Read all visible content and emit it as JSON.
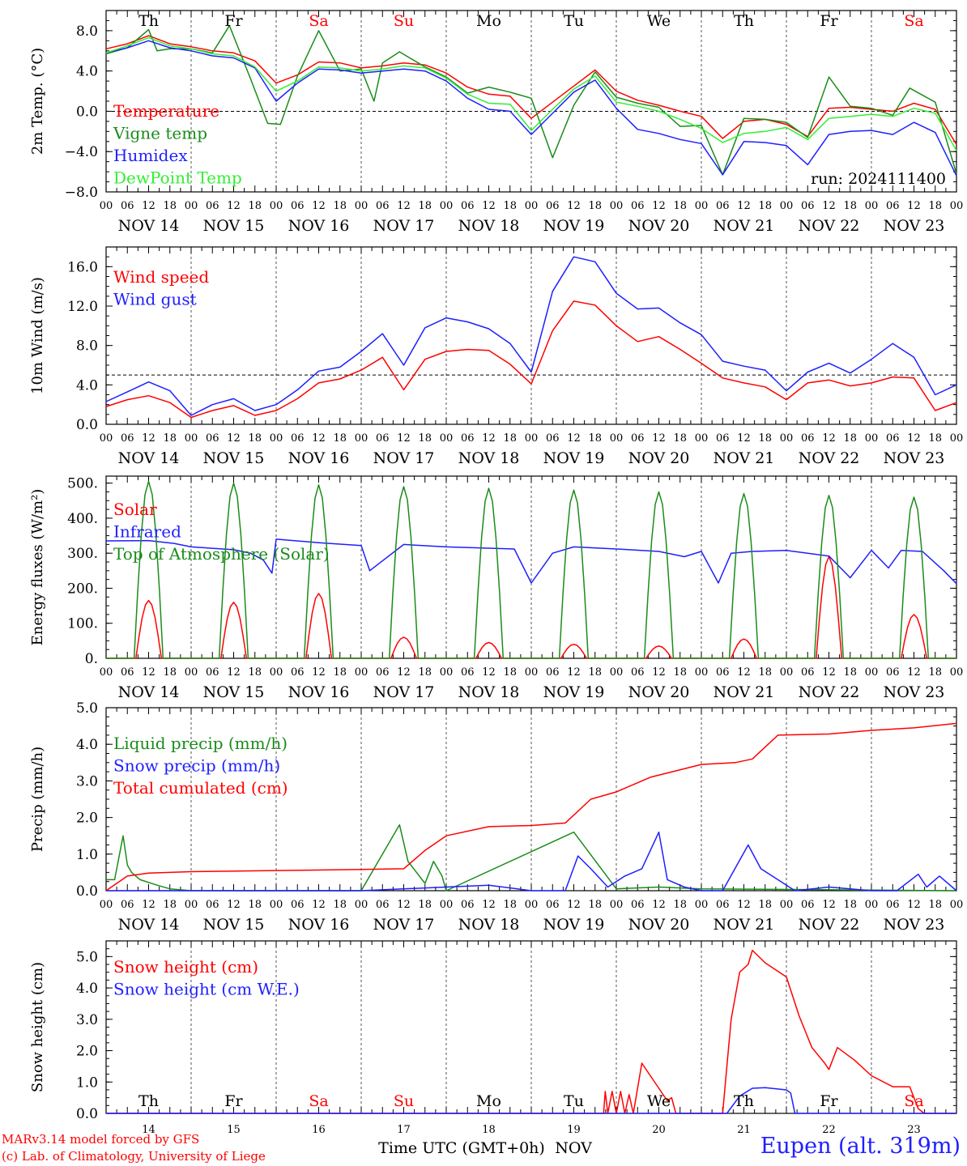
{
  "run_label": "run: 2024111400",
  "footer": {
    "credit_line1": "MARv3.14 model forced by GFS",
    "credit_line2": "(c) Lab. of Climatology, University of Liege",
    "station": "Eupen (alt. 319m)",
    "xlabel": "Time UTC (GMT+0h)",
    "month": "NOV"
  },
  "days": [
    "Th",
    "Fr",
    "Sa",
    "Su",
    "Mo",
    "Tu",
    "We",
    "Th",
    "Fr",
    "Sa"
  ],
  "weekend_days": [
    "Sa",
    "Su"
  ],
  "date_labels": [
    "NOV 14",
    "NOV 15",
    "NOV 16",
    "NOV 17",
    "NOV 18",
    "NOV 19",
    "NOV 20",
    "NOV 21",
    "NOV 22",
    "NOV 23"
  ],
  "day_numbers": [
    "14",
    "15",
    "16",
    "17",
    "18",
    "19",
    "20",
    "21",
    "22",
    "23"
  ],
  "hour_ticks": [
    "00",
    "06",
    "12",
    "18"
  ],
  "colors": {
    "red": "#ff0000",
    "green": "#1a8c1a",
    "blue": "#1f1fff",
    "lightgreen": "#33ee33",
    "black": "#000000",
    "weekend": "#ff0000"
  },
  "chart_data": [
    {
      "type": "line",
      "ylabel": "2m Temp. (°C)",
      "ylim": [
        -8,
        10
      ],
      "yticks": [
        -8,
        -4,
        0,
        4,
        8
      ],
      "ytick_labels": [
        "−8.0",
        "−4.0",
        "0.0",
        "4.0",
        "8.0"
      ],
      "ref_line": 0,
      "x_unit": "days from NOV 14 00 UTC",
      "series": [
        {
          "name": "Temperature",
          "color": "red",
          "x": [
            0,
            0.25,
            0.5,
            0.75,
            1,
            1.25,
            1.5,
            1.75,
            2,
            2.25,
            2.5,
            2.75,
            3,
            3.25,
            3.5,
            3.75,
            4,
            4.25,
            4.5,
            4.75,
            5,
            5.25,
            5.5,
            5.75,
            6,
            6.25,
            6.5,
            6.75,
            7,
            7.25,
            7.5,
            7.75,
            8,
            8.25,
            8.5,
            8.75,
            9,
            9.25,
            9.5,
            9.75,
            10
          ],
          "y": [
            6.2,
            6.7,
            7.5,
            6.7,
            6.4,
            6.0,
            5.8,
            5.0,
            2.8,
            3.6,
            4.9,
            4.8,
            4.3,
            4.5,
            4.8,
            4.6,
            3.8,
            2.4,
            1.7,
            1.5,
            -0.7,
            0.9,
            2.5,
            4.1,
            2.0,
            1.1,
            0.6,
            0.0,
            -0.5,
            -2.7,
            -1.0,
            -0.8,
            -1.3,
            -2.5,
            0.3,
            0.4,
            0.2,
            0.0,
            0.8,
            0.2,
            -3.3
          ]
        },
        {
          "name": "Vigne temp",
          "color": "green",
          "x": [
            0,
            0.25,
            0.5,
            0.6,
            0.75,
            1,
            1.25,
            1.45,
            1.7,
            1.9,
            2.05,
            2.25,
            2.5,
            2.75,
            3,
            3.15,
            3.25,
            3.45,
            3.75,
            4,
            4.25,
            4.5,
            4.75,
            5,
            5.25,
            5.5,
            5.75,
            6,
            6.25,
            6.5,
            6.75,
            7,
            7.25,
            7.5,
            7.75,
            8,
            8.25,
            8.5,
            8.75,
            9,
            9.25,
            9.45,
            9.75,
            10
          ],
          "y": [
            5.7,
            6.3,
            8.1,
            6.0,
            6.2,
            6.2,
            5.8,
            8.5,
            3.2,
            -1.2,
            -1.3,
            3.5,
            8.0,
            4.0,
            4.2,
            1.0,
            4.8,
            5.9,
            4.4,
            3.4,
            1.8,
            2.4,
            1.9,
            1.3,
            -4.6,
            0.6,
            3.9,
            1.4,
            0.8,
            0.4,
            -1.5,
            -1.4,
            -6.3,
            -0.7,
            -0.8,
            -1.1,
            -2.6,
            3.4,
            0.5,
            0.3,
            -0.4,
            2.3,
            0.9,
            -6.2
          ]
        },
        {
          "name": "Humidex",
          "color": "blue",
          "x": [
            0,
            0.25,
            0.5,
            0.75,
            1,
            1.25,
            1.5,
            1.75,
            2,
            2.25,
            2.5,
            2.75,
            3,
            3.25,
            3.5,
            3.75,
            4,
            4.25,
            4.5,
            4.75,
            5,
            5.25,
            5.5,
            5.75,
            6,
            6.25,
            6.5,
            6.75,
            7,
            7.25,
            7.5,
            7.75,
            8,
            8.25,
            8.5,
            8.75,
            9,
            9.25,
            9.5,
            9.75,
            10
          ],
          "y": [
            5.8,
            6.3,
            7.0,
            6.3,
            6.0,
            5.5,
            5.3,
            4.3,
            1.0,
            2.8,
            4.2,
            4.1,
            3.8,
            4.0,
            4.2,
            4.0,
            3.0,
            1.3,
            0.2,
            0.0,
            -2.3,
            -0.2,
            1.9,
            3.1,
            0.3,
            -1.8,
            -2.2,
            -2.8,
            -3.2,
            -6.3,
            -3.0,
            -3.1,
            -3.4,
            -5.3,
            -2.3,
            -2.0,
            -1.9,
            -2.3,
            -1.1,
            -2.1,
            -6.4
          ]
        },
        {
          "name": "DewPoint Temp",
          "color": "lightgreen",
          "x": [
            0,
            0.25,
            0.5,
            0.75,
            1,
            1.25,
            1.5,
            1.75,
            2,
            2.25,
            2.5,
            2.75,
            3,
            3.25,
            3.5,
            3.75,
            4,
            4.25,
            4.5,
            4.75,
            5,
            5.25,
            5.5,
            5.75,
            6,
            6.25,
            6.5,
            6.75,
            7,
            7.25,
            7.5,
            7.75,
            8,
            8.25,
            8.5,
            8.75,
            9,
            9.25,
            9.5,
            9.75,
            10
          ],
          "y": [
            5.8,
            6.5,
            7.3,
            6.5,
            6.2,
            5.7,
            5.5,
            4.4,
            2.0,
            3.0,
            4.4,
            4.3,
            4.0,
            4.2,
            4.5,
            4.3,
            3.3,
            1.7,
            0.8,
            0.7,
            -1.9,
            0.2,
            2.2,
            3.5,
            0.9,
            0.5,
            0.0,
            -0.8,
            -1.7,
            -3.1,
            -2.2,
            -2.0,
            -1.6,
            -2.8,
            -0.7,
            -0.5,
            -0.3,
            -0.5,
            0.3,
            -0.2,
            -3.9
          ]
        }
      ]
    },
    {
      "type": "line",
      "ylabel": "10m Wind (m/s)",
      "ylim": [
        0,
        18
      ],
      "yticks": [
        0,
        4,
        8,
        12,
        16
      ],
      "ytick_labels": [
        "0.0",
        "4.0",
        "8.0",
        "12.0",
        "16.0"
      ],
      "ref_line": 5,
      "x_unit": "days from NOV 14 00 UTC",
      "series": [
        {
          "name": "Wind speed",
          "color": "red",
          "x": [
            0,
            0.25,
            0.5,
            0.75,
            1,
            1.25,
            1.5,
            1.75,
            2,
            2.25,
            2.5,
            2.75,
            3,
            3.25,
            3.5,
            3.75,
            4,
            4.25,
            4.5,
            4.75,
            5,
            5.25,
            5.5,
            5.75,
            6,
            6.25,
            6.5,
            6.75,
            7,
            7.25,
            7.5,
            7.75,
            8,
            8.25,
            8.5,
            8.75,
            9,
            9.25,
            9.5,
            9.75,
            10
          ],
          "y": [
            1.8,
            2.5,
            2.9,
            2.2,
            0.7,
            1.4,
            1.9,
            0.9,
            1.4,
            2.6,
            4.2,
            4.6,
            5.5,
            6.8,
            3.5,
            6.6,
            7.4,
            7.6,
            7.5,
            6.1,
            4.1,
            9.5,
            12.5,
            12.1,
            10.0,
            8.4,
            8.9,
            7.6,
            6.2,
            4.7,
            4.2,
            3.8,
            2.5,
            4.2,
            4.5,
            3.9,
            4.2,
            4.8,
            4.7,
            1.4,
            2.2
          ]
        },
        {
          "name": "Wind gust",
          "color": "blue",
          "x": [
            0,
            0.25,
            0.5,
            0.75,
            1,
            1.25,
            1.5,
            1.75,
            2,
            2.25,
            2.5,
            2.75,
            3,
            3.25,
            3.5,
            3.75,
            4,
            4.25,
            4.5,
            4.75,
            5,
            5.25,
            5.5,
            5.75,
            6,
            6.25,
            6.5,
            6.75,
            7,
            7.25,
            7.5,
            7.75,
            8,
            8.25,
            8.5,
            8.75,
            9,
            9.25,
            9.5,
            9.75,
            10
          ],
          "y": [
            2.3,
            3.3,
            4.3,
            3.4,
            0.9,
            2.0,
            2.6,
            1.4,
            2.0,
            3.5,
            5.4,
            5.8,
            7.4,
            9.2,
            6.0,
            9.8,
            10.8,
            10.4,
            9.7,
            8.2,
            5.3,
            13.5,
            17.0,
            16.5,
            13.3,
            11.7,
            11.8,
            10.3,
            9.1,
            6.4,
            5.9,
            5.5,
            3.4,
            5.3,
            6.2,
            5.2,
            6.6,
            8.2,
            6.8,
            3.0,
            4.0
          ]
        }
      ]
    },
    {
      "type": "line",
      "ylabel": "Energy fluxes (W/m²)",
      "ylim": [
        0,
        520
      ],
      "yticks": [
        0,
        100,
        200,
        300,
        400,
        500
      ],
      "ytick_labels": [
        "0.",
        "100.",
        "200.",
        "300.",
        "400.",
        "500."
      ],
      "x_unit": "days from NOV 14 00 UTC",
      "series": [
        {
          "name": "Solar",
          "color": "red",
          "peaks": [
            165,
            160,
            185,
            60,
            45,
            40,
            35,
            55,
            290,
            125
          ]
        },
        {
          "name": "Infrared",
          "color": "blue",
          "x": [
            0,
            0.5,
            0.8,
            1.0,
            1.5,
            1.7,
            1.85,
            1.95,
            2.0,
            2.5,
            3.0,
            3.1,
            3.5,
            4.0,
            4.8,
            5.0,
            5.25,
            5.5,
            6.0,
            6.5,
            6.8,
            7.0,
            7.2,
            7.35,
            7.6,
            8.0,
            8.5,
            8.75,
            9.0,
            9.2,
            9.35,
            9.6,
            9.85,
            10.0
          ],
          "y": [
            335,
            336,
            328,
            318,
            310,
            300,
            280,
            243,
            340,
            330,
            322,
            250,
            325,
            318,
            312,
            215,
            300,
            318,
            312,
            305,
            290,
            305,
            215,
            300,
            305,
            308,
            292,
            230,
            308,
            258,
            308,
            305,
            250,
            213
          ]
        },
        {
          "name": "Top of Atmosphere (Solar)",
          "color": "green",
          "peaks": [
            505,
            500,
            495,
            490,
            485,
            480,
            475,
            470,
            465,
            460
          ]
        }
      ]
    },
    {
      "type": "line",
      "ylabel": "Precip (mm/h)",
      "ylim": [
        0,
        5
      ],
      "yticks": [
        0,
        1,
        2,
        3,
        4,
        5
      ],
      "ytick_labels": [
        "0.0",
        "1.0",
        "2.0",
        "3.0",
        "4.0",
        "5.0"
      ],
      "x_unit": "days from NOV 14 00 UTC",
      "series": [
        {
          "name": "Liquid precip (mm/h)",
          "color": "green",
          "x": [
            0,
            0.1,
            0.2,
            0.25,
            0.3,
            0.4,
            0.6,
            0.75,
            1.0,
            3.0,
            3.45,
            3.55,
            3.65,
            3.75,
            3.85,
            3.95,
            4.0,
            5.5,
            6.0,
            6.5,
            7.0,
            10.0
          ],
          "y": [
            0.3,
            0.3,
            1.5,
            0.7,
            0.5,
            0.3,
            0.15,
            0.05,
            0.0,
            0.0,
            1.8,
            0.8,
            0.5,
            0.2,
            0.8,
            0.4,
            0.0,
            1.6,
            0.05,
            0.1,
            0.05,
            0.0
          ]
        },
        {
          "name": "Snow precip (mm/h)",
          "color": "blue",
          "x": [
            0,
            3.0,
            4.0,
            4.5,
            5.0,
            5.4,
            5.55,
            5.7,
            5.9,
            6.1,
            6.3,
            6.5,
            6.6,
            6.8,
            7.0,
            7.25,
            7.55,
            7.7,
            7.9,
            8.1,
            8.5,
            9.0,
            9.3,
            9.55,
            9.65,
            9.8,
            10.0
          ],
          "y": [
            0.0,
            0.0,
            0.1,
            0.15,
            0.0,
            0.0,
            0.95,
            0.6,
            0.1,
            0.4,
            0.6,
            1.6,
            0.3,
            0.1,
            0.0,
            0.0,
            1.25,
            0.6,
            0.3,
            0.0,
            0.1,
            0.0,
            0.0,
            0.45,
            0.1,
            0.4,
            0.0
          ]
        },
        {
          "name": "Total cumulated (cm)",
          "color": "red",
          "x": [
            0,
            0.25,
            0.5,
            1.0,
            2.0,
            3.0,
            3.5,
            3.75,
            4.0,
            4.5,
            5.0,
            5.4,
            5.7,
            6.0,
            6.4,
            7.0,
            7.4,
            7.6,
            7.9,
            8.5,
            9.0,
            9.5,
            10.0
          ],
          "y": [
            0.0,
            0.4,
            0.48,
            0.52,
            0.55,
            0.58,
            0.6,
            1.1,
            1.5,
            1.75,
            1.78,
            1.85,
            2.5,
            2.7,
            3.1,
            3.45,
            3.5,
            3.6,
            4.25,
            4.28,
            4.38,
            4.45,
            4.57
          ]
        }
      ]
    },
    {
      "type": "line",
      "ylabel": "Snow height (cm)",
      "ylim": [
        0,
        5.5
      ],
      "yticks": [
        0,
        1,
        2,
        3,
        4,
        5
      ],
      "ytick_labels": [
        "0.0",
        "1.0",
        "2.0",
        "3.0",
        "4.0",
        "5.0"
      ],
      "x_unit": "days from NOV 14 00 UTC",
      "series": [
        {
          "name": "Snow height (cm)",
          "color": "red",
          "x": [
            0,
            5.85,
            5.87,
            5.9,
            5.95,
            6.0,
            6.05,
            6.1,
            6.15,
            6.2,
            6.3,
            6.5,
            6.6,
            6.65,
            6.7,
            7.25,
            7.3,
            7.35,
            7.45,
            7.55,
            7.6,
            7.75,
            8.0,
            8.15,
            8.3,
            8.45,
            8.5,
            8.6,
            8.8,
            9.0,
            9.25,
            9.45,
            9.55,
            9.62,
            10.0
          ],
          "y": [
            0.0,
            0.0,
            0.7,
            0.0,
            0.7,
            0.0,
            0.7,
            0.0,
            0.6,
            0.0,
            1.6,
            0.8,
            0.4,
            0.5,
            0.0,
            0.0,
            1.5,
            3.0,
            4.5,
            4.75,
            5.2,
            4.8,
            4.35,
            3.1,
            2.1,
            1.6,
            1.4,
            2.1,
            1.7,
            1.2,
            0.85,
            0.85,
            0.15,
            0.0,
            0.0
          ]
        },
        {
          "name": "Snow height (cm W.E.)",
          "color": "blue",
          "x": [
            0,
            7.3,
            7.45,
            7.6,
            7.75,
            8.0,
            8.05,
            8.1,
            10.0
          ],
          "y": [
            0.0,
            0.0,
            0.55,
            0.8,
            0.82,
            0.75,
            0.65,
            0.0,
            0.0
          ]
        }
      ]
    }
  ]
}
